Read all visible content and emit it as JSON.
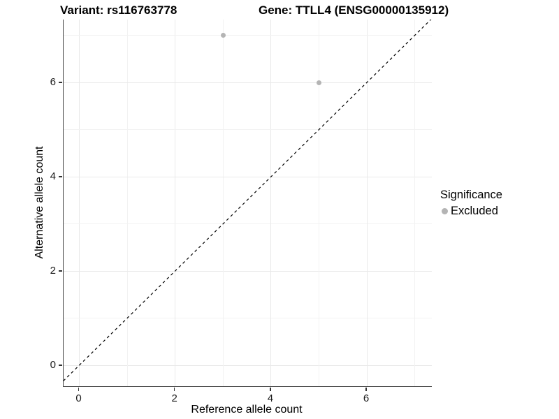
{
  "chart": {
    "title_variant": "Variant: rs116763778",
    "title_gene": "Gene: TTLL4 (ENSG00000135912)"
  },
  "chart_data": {
    "type": "scatter",
    "title": "Variant: rs116763778   Gene: TTLL4 (ENSG00000135912)",
    "xlabel": "Reference allele count",
    "ylabel": "Alternative allele count",
    "xlim": [
      -0.35,
      7.35
    ],
    "ylim": [
      -0.45,
      7.35
    ],
    "x_ticks": [
      0,
      2,
      4,
      6
    ],
    "y_ticks": [
      0,
      2,
      4,
      6
    ],
    "grid": "major at even integers, minor at odd integers",
    "series": [
      {
        "name": "Excluded",
        "color": "#b4b4b4",
        "points": [
          {
            "x": 3,
            "y": 7
          },
          {
            "x": 5,
            "y": 6
          }
        ]
      }
    ],
    "reference_line": {
      "type": "identity y=x",
      "style": "dashed",
      "color": "#000000"
    },
    "legend": {
      "title": "Significance",
      "position": "right",
      "items": [
        {
          "label": "Excluded",
          "color": "#b4b4b4"
        }
      ]
    }
  },
  "colors": {
    "background": "#ffffff",
    "axis_line": "#4d4d4d",
    "grid_major": "#e9e9e9",
    "grid_minor": "#f2f2f2",
    "point": "#b4b4b4",
    "text": "#000000"
  }
}
